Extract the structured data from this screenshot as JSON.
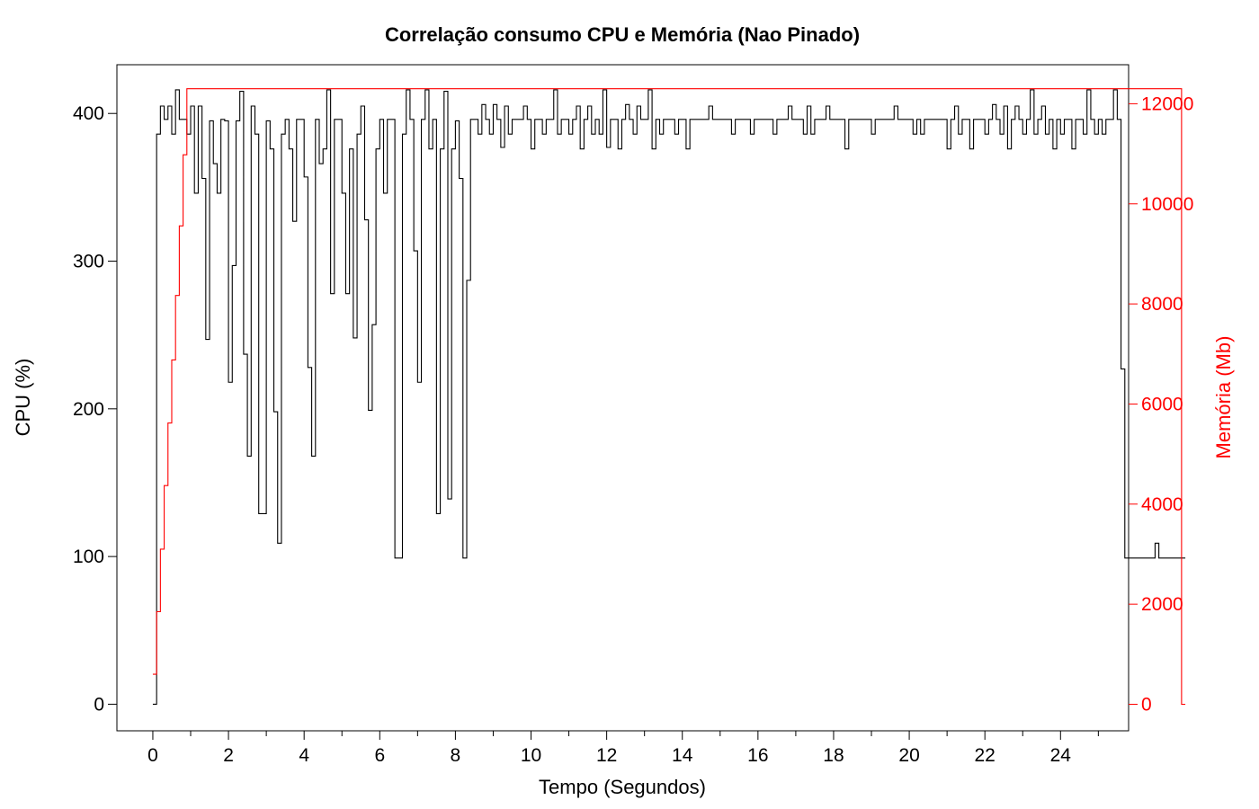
{
  "chart_data": {
    "type": "line",
    "title": "Correlação consumo CPU e Memória (Nao Pinado)",
    "xlabel": "Tempo (Segundos)",
    "ylabel_left": "CPU (%)",
    "ylabel_right": "Memória (Mb)",
    "xlim": [
      -0.95,
      25.8
    ],
    "ylim_left": [
      -18,
      433
    ],
    "ylim_right": [
      -530,
      12780
    ],
    "x_ticks": [
      0,
      2,
      4,
      6,
      8,
      10,
      12,
      14,
      16,
      18,
      20,
      22,
      24
    ],
    "y_ticks_left": [
      0,
      100,
      200,
      300,
      400
    ],
    "y_ticks_right": [
      0,
      2000,
      4000,
      6000,
      8000,
      10000,
      12000
    ],
    "grid": false,
    "step_width": 0.1,
    "colors": {
      "cpu": "#000000",
      "memory": "#ff0000"
    },
    "series": [
      {
        "axis": "left",
        "start_x": 0.0,
        "values": [
          0,
          386,
          405,
          396,
          405,
          386,
          416,
          396,
          396,
          386,
          405,
          346,
          405,
          356,
          247,
          395,
          366,
          346,
          396,
          395,
          218,
          297,
          395,
          415,
          237,
          168,
          405,
          386,
          129,
          129,
          395,
          376,
          198,
          109,
          386,
          396,
          376,
          327,
          396,
          396,
          357,
          228,
          168,
          396,
          366,
          376,
          416,
          278,
          396,
          396,
          346,
          278,
          376,
          248,
          386,
          405,
          328,
          199,
          257,
          376,
          396,
          346,
          396,
          396,
          99,
          99,
          386,
          416,
          396,
          307,
          218,
          396,
          416,
          376,
          396,
          129,
          376,
          415,
          139,
          376,
          395,
          356,
          99,
          287,
          396,
          396,
          386,
          406,
          396,
          386,
          406,
          396,
          377,
          405,
          386,
          396,
          396,
          396,
          405,
          396,
          376,
          396,
          396,
          386,
          396,
          396,
          416,
          386,
          396,
          396,
          386,
          396,
          405,
          376,
          396,
          405,
          386,
          396,
          386,
          416,
          377,
          396,
          396,
          376,
          396,
          406,
          396,
          386,
          405,
          396,
          396,
          416,
          376,
          396,
          386,
          396,
          396,
          396,
          386,
          396,
          396,
          376,
          396,
          396,
          396,
          396,
          396,
          405,
          396,
          396,
          396,
          396,
          396,
          386,
          396,
          396,
          396,
          396,
          386,
          396,
          396,
          396,
          396,
          396,
          386,
          396,
          396,
          396,
          405,
          396,
          396,
          396,
          386,
          405,
          386,
          396,
          396,
          396,
          405,
          396,
          396,
          396,
          396,
          376,
          396,
          396,
          396,
          396,
          396,
          396,
          386,
          396,
          396,
          396,
          396,
          396,
          405,
          396,
          396,
          396,
          396,
          386,
          396,
          386,
          396,
          396,
          396,
          396,
          396,
          396,
          376,
          396,
          405,
          386,
          396,
          396,
          376,
          396,
          396,
          396,
          386,
          396,
          406,
          396,
          386,
          405,
          376,
          396,
          405,
          396,
          386,
          396,
          416,
          386,
          396,
          405,
          386,
          396,
          376,
          396,
          386,
          396,
          396,
          376,
          396,
          396,
          386,
          416,
          396,
          386,
          396,
          386,
          396,
          396,
          416,
          396,
          227,
          99,
          99,
          99,
          99,
          99,
          99,
          99,
          99,
          109,
          99,
          99,
          99,
          99,
          99,
          99,
          99
        ]
      },
      {
        "axis": "right",
        "start_x": 0.0,
        "values": [
          600,
          1850,
          3100,
          4370,
          5620,
          6880,
          8170,
          9560,
          10980,
          12300,
          12300,
          12300,
          12300,
          12300,
          12300,
          12300,
          12300,
          12300,
          12300,
          12300,
          12300,
          12300,
          12300,
          12300,
          12300,
          12300,
          12300,
          12300,
          12300,
          12300,
          12300,
          12300,
          12300,
          12300,
          12300,
          12300,
          12300,
          12300,
          12300,
          12300,
          12300,
          12300,
          12300,
          12300,
          12300,
          12300,
          12300,
          12300,
          12300,
          12300,
          12300,
          12300,
          12300,
          12300,
          12300,
          12300,
          12300,
          12300,
          12300,
          12300,
          12300,
          12300,
          12300,
          12300,
          12300,
          12300,
          12300,
          12300,
          12300,
          12300,
          12300,
          12300,
          12300,
          12300,
          12300,
          12300,
          12300,
          12300,
          12300,
          12300,
          12300,
          12300,
          12300,
          12300,
          12300,
          12300,
          12300,
          12300,
          12300,
          12300,
          12300,
          12300,
          12300,
          12300,
          12300,
          12300,
          12300,
          12300,
          12300,
          12300,
          12300,
          12300,
          12300,
          12300,
          12300,
          12300,
          12300,
          12300,
          12300,
          12300,
          12300,
          12300,
          12300,
          12300,
          12300,
          12300,
          12300,
          12300,
          12300,
          12300,
          12300,
          12300,
          12300,
          12300,
          12300,
          12300,
          12300,
          12300,
          12300,
          12300,
          12300,
          12300,
          12300,
          12300,
          12300,
          12300,
          12300,
          12300,
          12300,
          12300,
          12300,
          12300,
          12300,
          12300,
          12300,
          12300,
          12300,
          12300,
          12300,
          12300,
          12300,
          12300,
          12300,
          12300,
          12300,
          12300,
          12300,
          12300,
          12300,
          12300,
          12300,
          12300,
          12300,
          12300,
          12300,
          12300,
          12300,
          12300,
          12300,
          12300,
          12300,
          12300,
          12300,
          12300,
          12300,
          12300,
          12300,
          12300,
          12300,
          12300,
          12300,
          12300,
          12300,
          12300,
          12300,
          12300,
          12300,
          12300,
          12300,
          12300,
          12300,
          12300,
          12300,
          12300,
          12300,
          12300,
          12300,
          12300,
          12300,
          12300,
          12300,
          12300,
          12300,
          12300,
          12300,
          12300,
          12300,
          12300,
          12300,
          12300,
          12300,
          12300,
          12300,
          12300,
          12300,
          12300,
          12300,
          12300,
          12300,
          12300,
          12300,
          12300,
          12300,
          12300,
          12300,
          12300,
          12300,
          12300,
          12300,
          12300,
          12300,
          12300,
          12300,
          12300,
          12300,
          12300,
          12300,
          12300,
          12300,
          12300,
          12300,
          12300,
          12300,
          12300,
          12300,
          12300,
          12300,
          12300,
          12300,
          12300,
          12300,
          12300,
          12300,
          12300,
          12300,
          12300,
          12300,
          12300,
          12300,
          12300,
          12300,
          12300,
          12300,
          12300,
          12300,
          12300,
          12300,
          12300,
          12300,
          12300,
          12300,
          12300,
          0
        ]
      }
    ]
  }
}
